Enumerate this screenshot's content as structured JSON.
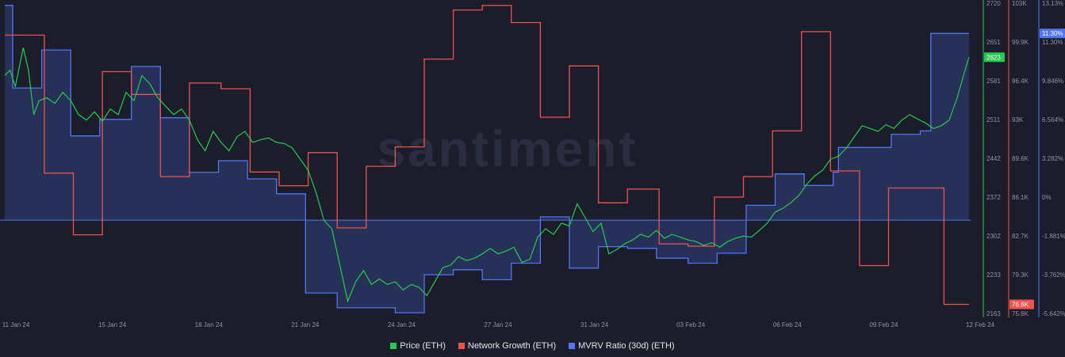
{
  "chart_data": {
    "type": "line",
    "watermark": "santiment",
    "x_ticks": [
      "11 Jan 24",
      "15 Jan 24",
      "18 Jan 24",
      "21 Jan 24",
      "24 Jan 24",
      "27 Jan 24",
      "31 Jan 24",
      "03 Feb 24",
      "06 Feb 24",
      "09 Feb 24",
      "12 Feb 24"
    ],
    "x_range": [
      "2024-01-11",
      "2024-02-12"
    ],
    "grid": false,
    "legend_position": "bottom-center",
    "axes": {
      "price": {
        "ticks": [
          "2720",
          "2651",
          "2581",
          "2511",
          "2442",
          "2372",
          "2302",
          "2233",
          "2163"
        ],
        "range": [
          2163,
          2720
        ],
        "current_label": "2623",
        "color": "#26c953"
      },
      "network_growth": {
        "ticks": [
          "103K",
          "99.9K",
          "96.4K",
          "93K",
          "89.6K",
          "86.1K",
          "82.7K",
          "79.3K",
          "75.8K"
        ],
        "range": [
          75800,
          103000
        ],
        "current_label": "76.6K",
        "color": "#ef5350"
      },
      "mvrv": {
        "ticks": [
          "13.13%",
          "11.30%",
          "9.846%",
          "6.564%",
          "3.282%",
          "0%",
          "-1.881%",
          "-3.762%",
          "-5.642%"
        ],
        "range": [
          -5.642,
          13.13
        ],
        "current_label": "11.30%",
        "color": "#5275f5"
      }
    },
    "series": [
      {
        "name": "Price (ETH)",
        "axis": "price",
        "color": "#26c953",
        "points": [
          [
            0,
            2590
          ],
          [
            0.2,
            2600
          ],
          [
            0.4,
            2570
          ],
          [
            0.7,
            2640
          ],
          [
            0.9,
            2600
          ],
          [
            1.1,
            2520
          ],
          [
            1.3,
            2545
          ],
          [
            1.6,
            2550
          ],
          [
            1.9,
            2540
          ],
          [
            2.2,
            2560
          ],
          [
            2.5,
            2545
          ],
          [
            2.8,
            2520
          ],
          [
            3.1,
            2510
          ],
          [
            3.4,
            2525
          ],
          [
            3.7,
            2508
          ],
          [
            4.0,
            2530
          ],
          [
            4.3,
            2520
          ],
          [
            4.6,
            2560
          ],
          [
            4.9,
            2545
          ],
          [
            5.2,
            2590
          ],
          [
            5.5,
            2575
          ],
          [
            5.8,
            2550
          ],
          [
            6.1,
            2535
          ],
          [
            6.4,
            2520
          ],
          [
            6.7,
            2530
          ],
          [
            7.0,
            2510
          ],
          [
            7.3,
            2475
          ],
          [
            7.6,
            2455
          ],
          [
            7.9,
            2490
          ],
          [
            8.2,
            2470
          ],
          [
            8.5,
            2455
          ],
          [
            8.8,
            2480
          ],
          [
            9.1,
            2490
          ],
          [
            9.4,
            2470
          ],
          [
            9.7,
            2475
          ],
          [
            10.0,
            2478
          ],
          [
            10.3,
            2470
          ],
          [
            10.6,
            2468
          ],
          [
            10.9,
            2460
          ],
          [
            11.2,
            2440
          ],
          [
            11.5,
            2420
          ],
          [
            11.8,
            2380
          ],
          [
            12.1,
            2330
          ],
          [
            12.4,
            2315
          ],
          [
            12.7,
            2250
          ],
          [
            13.0,
            2185
          ],
          [
            13.3,
            2220
          ],
          [
            13.6,
            2240
          ],
          [
            13.9,
            2215
          ],
          [
            14.2,
            2225
          ],
          [
            14.5,
            2215
          ],
          [
            14.8,
            2220
          ],
          [
            15.1,
            2205
          ],
          [
            15.4,
            2215
          ],
          [
            15.7,
            2210
          ],
          [
            16.0,
            2195
          ],
          [
            16.3,
            2220
          ],
          [
            16.6,
            2245
          ],
          [
            16.9,
            2250
          ],
          [
            17.2,
            2265
          ],
          [
            17.5,
            2258
          ],
          [
            17.8,
            2262
          ],
          [
            18.1,
            2270
          ],
          [
            18.4,
            2280
          ],
          [
            18.7,
            2270
          ],
          [
            19.0,
            2275
          ],
          [
            19.3,
            2282
          ],
          [
            19.6,
            2255
          ],
          [
            19.9,
            2260
          ],
          [
            20.2,
            2300
          ],
          [
            20.5,
            2315
          ],
          [
            20.8,
            2305
          ],
          [
            21.1,
            2325
          ],
          [
            21.4,
            2320
          ],
          [
            21.7,
            2360
          ],
          [
            22.0,
            2335
          ],
          [
            22.3,
            2310
          ],
          [
            22.6,
            2325
          ],
          [
            22.9,
            2270
          ],
          [
            23.2,
            2278
          ],
          [
            23.5,
            2288
          ],
          [
            23.8,
            2295
          ],
          [
            24.1,
            2305
          ],
          [
            24.4,
            2300
          ],
          [
            24.7,
            2312
          ],
          [
            25.0,
            2298
          ],
          [
            25.3,
            2305
          ],
          [
            25.6,
            2300
          ],
          [
            25.9,
            2295
          ],
          [
            26.2,
            2292
          ],
          [
            26.5,
            2285
          ],
          [
            26.8,
            2290
          ],
          [
            27.1,
            2282
          ],
          [
            27.4,
            2292
          ],
          [
            27.7,
            2298
          ],
          [
            28.0,
            2302
          ],
          [
            28.3,
            2300
          ],
          [
            28.6,
            2312
          ],
          [
            28.9,
            2325
          ],
          [
            29.2,
            2345
          ],
          [
            29.5,
            2352
          ],
          [
            29.8,
            2362
          ],
          [
            30.1,
            2375
          ],
          [
            30.4,
            2395
          ],
          [
            30.7,
            2410
          ],
          [
            31.0,
            2420
          ],
          [
            31.3,
            2440
          ],
          [
            31.6,
            2445
          ],
          [
            31.9,
            2460
          ],
          [
            32.2,
            2480
          ],
          [
            32.5,
            2500
          ],
          [
            32.8,
            2495
          ],
          [
            33.1,
            2490
          ],
          [
            33.4,
            2502
          ],
          [
            33.7,
            2495
          ],
          [
            34.0,
            2510
          ],
          [
            34.3,
            2520
          ],
          [
            34.6,
            2512
          ],
          [
            34.9,
            2505
          ],
          [
            35.2,
            2495
          ],
          [
            35.5,
            2500
          ],
          [
            35.8,
            2510
          ],
          [
            36.1,
            2550
          ],
          [
            36.4,
            2600
          ],
          [
            36.55,
            2623
          ]
        ]
      },
      {
        "name": "Network Growth (ETH)",
        "axis": "network_growth",
        "color": "#ef5350",
        "points": [
          [
            0,
            100200
          ],
          [
            1.5,
            100200
          ],
          [
            1.5,
            88100
          ],
          [
            2.6,
            88100
          ],
          [
            2.6,
            82700
          ],
          [
            3.7,
            82700
          ],
          [
            3.7,
            97000
          ],
          [
            4.8,
            97000
          ],
          [
            4.8,
            95000
          ],
          [
            5.9,
            95000
          ],
          [
            5.9,
            87800
          ],
          [
            7.0,
            87800
          ],
          [
            7.0,
            96000
          ],
          [
            8.2,
            96000
          ],
          [
            8.2,
            95500
          ],
          [
            9.3,
            95500
          ],
          [
            9.3,
            88200
          ],
          [
            10.4,
            88200
          ],
          [
            10.4,
            87000
          ],
          [
            11.5,
            87000
          ],
          [
            11.5,
            89900
          ],
          [
            12.6,
            89900
          ],
          [
            12.6,
            83300
          ],
          [
            13.7,
            83300
          ],
          [
            13.7,
            88700
          ],
          [
            14.8,
            88700
          ],
          [
            14.8,
            90400
          ],
          [
            15.9,
            90400
          ],
          [
            15.9,
            98100
          ],
          [
            17.0,
            98100
          ],
          [
            17.0,
            102400
          ],
          [
            18.1,
            102400
          ],
          [
            18.1,
            102800
          ],
          [
            19.2,
            102800
          ],
          [
            19.2,
            101300
          ],
          [
            20.3,
            101300
          ],
          [
            20.3,
            93000
          ],
          [
            21.4,
            93000
          ],
          [
            21.4,
            97500
          ],
          [
            22.5,
            97500
          ],
          [
            22.5,
            85500
          ],
          [
            23.6,
            85500
          ],
          [
            23.6,
            86700
          ],
          [
            24.8,
            86700
          ],
          [
            24.8,
            81900
          ],
          [
            25.9,
            81900
          ],
          [
            25.9,
            81700
          ],
          [
            26.9,
            81700
          ],
          [
            26.9,
            86000
          ],
          [
            28.0,
            86000
          ],
          [
            28.0,
            87800
          ],
          [
            29.1,
            87800
          ],
          [
            29.1,
            91800
          ],
          [
            30.2,
            91800
          ],
          [
            30.2,
            100500
          ],
          [
            31.3,
            100500
          ],
          [
            31.3,
            88300
          ],
          [
            32.4,
            88300
          ],
          [
            32.4,
            80000
          ],
          [
            33.5,
            80000
          ],
          [
            33.5,
            86800
          ],
          [
            35.6,
            86800
          ],
          [
            35.6,
            76600
          ],
          [
            36.55,
            76600
          ]
        ]
      },
      {
        "name": "MVRV Ratio (30d) (ETH)",
        "axis": "mvrv",
        "color": "#5275f5",
        "points": [
          [
            0,
            13.0
          ],
          [
            0.3,
            13.0
          ],
          [
            0.3,
            8.0
          ],
          [
            1.4,
            8.0
          ],
          [
            1.4,
            10.3
          ],
          [
            2.5,
            10.3
          ],
          [
            2.5,
            5.1
          ],
          [
            3.6,
            5.1
          ],
          [
            3.6,
            6.1
          ],
          [
            4.8,
            6.1
          ],
          [
            4.8,
            9.3
          ],
          [
            5.9,
            9.3
          ],
          [
            5.9,
            6.2
          ],
          [
            7.0,
            6.2
          ],
          [
            7.0,
            2.9
          ],
          [
            8.1,
            2.9
          ],
          [
            8.1,
            3.6
          ],
          [
            9.2,
            3.6
          ],
          [
            9.2,
            2.5
          ],
          [
            10.3,
            2.5
          ],
          [
            10.3,
            1.6
          ],
          [
            11.4,
            1.6
          ],
          [
            11.4,
            -4.4
          ],
          [
            12.6,
            -4.4
          ],
          [
            12.6,
            -5.3
          ],
          [
            14.8,
            -5.3
          ],
          [
            14.8,
            -5.6
          ],
          [
            15.9,
            -5.6
          ],
          [
            15.9,
            -3.3
          ],
          [
            17.0,
            -3.3
          ],
          [
            17.0,
            -3.0
          ],
          [
            18.1,
            -3.0
          ],
          [
            18.1,
            -3.6
          ],
          [
            19.2,
            -3.6
          ],
          [
            19.2,
            -2.6
          ],
          [
            20.3,
            -2.6
          ],
          [
            20.3,
            0.2
          ],
          [
            21.4,
            0.2
          ],
          [
            21.4,
            -2.9
          ],
          [
            22.5,
            -2.9
          ],
          [
            22.5,
            -1.6
          ],
          [
            23.6,
            -1.6
          ],
          [
            23.6,
            -1.7
          ],
          [
            24.7,
            -1.7
          ],
          [
            24.7,
            -2.3
          ],
          [
            25.9,
            -2.3
          ],
          [
            25.9,
            -2.6
          ],
          [
            27.0,
            -2.6
          ],
          [
            27.0,
            -2.0
          ],
          [
            28.1,
            -2.0
          ],
          [
            28.1,
            0.9
          ],
          [
            29.2,
            0.9
          ],
          [
            29.2,
            2.8
          ],
          [
            30.3,
            2.8
          ],
          [
            30.3,
            2.1
          ],
          [
            31.4,
            2.1
          ],
          [
            31.4,
            2.9
          ],
          [
            31.6,
            2.9
          ],
          [
            31.6,
            4.4
          ],
          [
            33.6,
            4.4
          ],
          [
            33.6,
            5.2
          ],
          [
            34.7,
            5.2
          ],
          [
            34.7,
            5.4
          ],
          [
            35.1,
            5.4
          ],
          [
            35.1,
            11.3
          ],
          [
            35.8,
            11.3
          ],
          [
            35.8,
            11.3
          ],
          [
            36.55,
            11.3
          ]
        ]
      }
    ]
  },
  "legend": [
    {
      "label": "Price (ETH)",
      "color": "#26c953"
    },
    {
      "label": "Network Growth (ETH)",
      "color": "#ef5350"
    },
    {
      "label": "MVRV Ratio (30d) (ETH)",
      "color": "#5275f5"
    }
  ]
}
